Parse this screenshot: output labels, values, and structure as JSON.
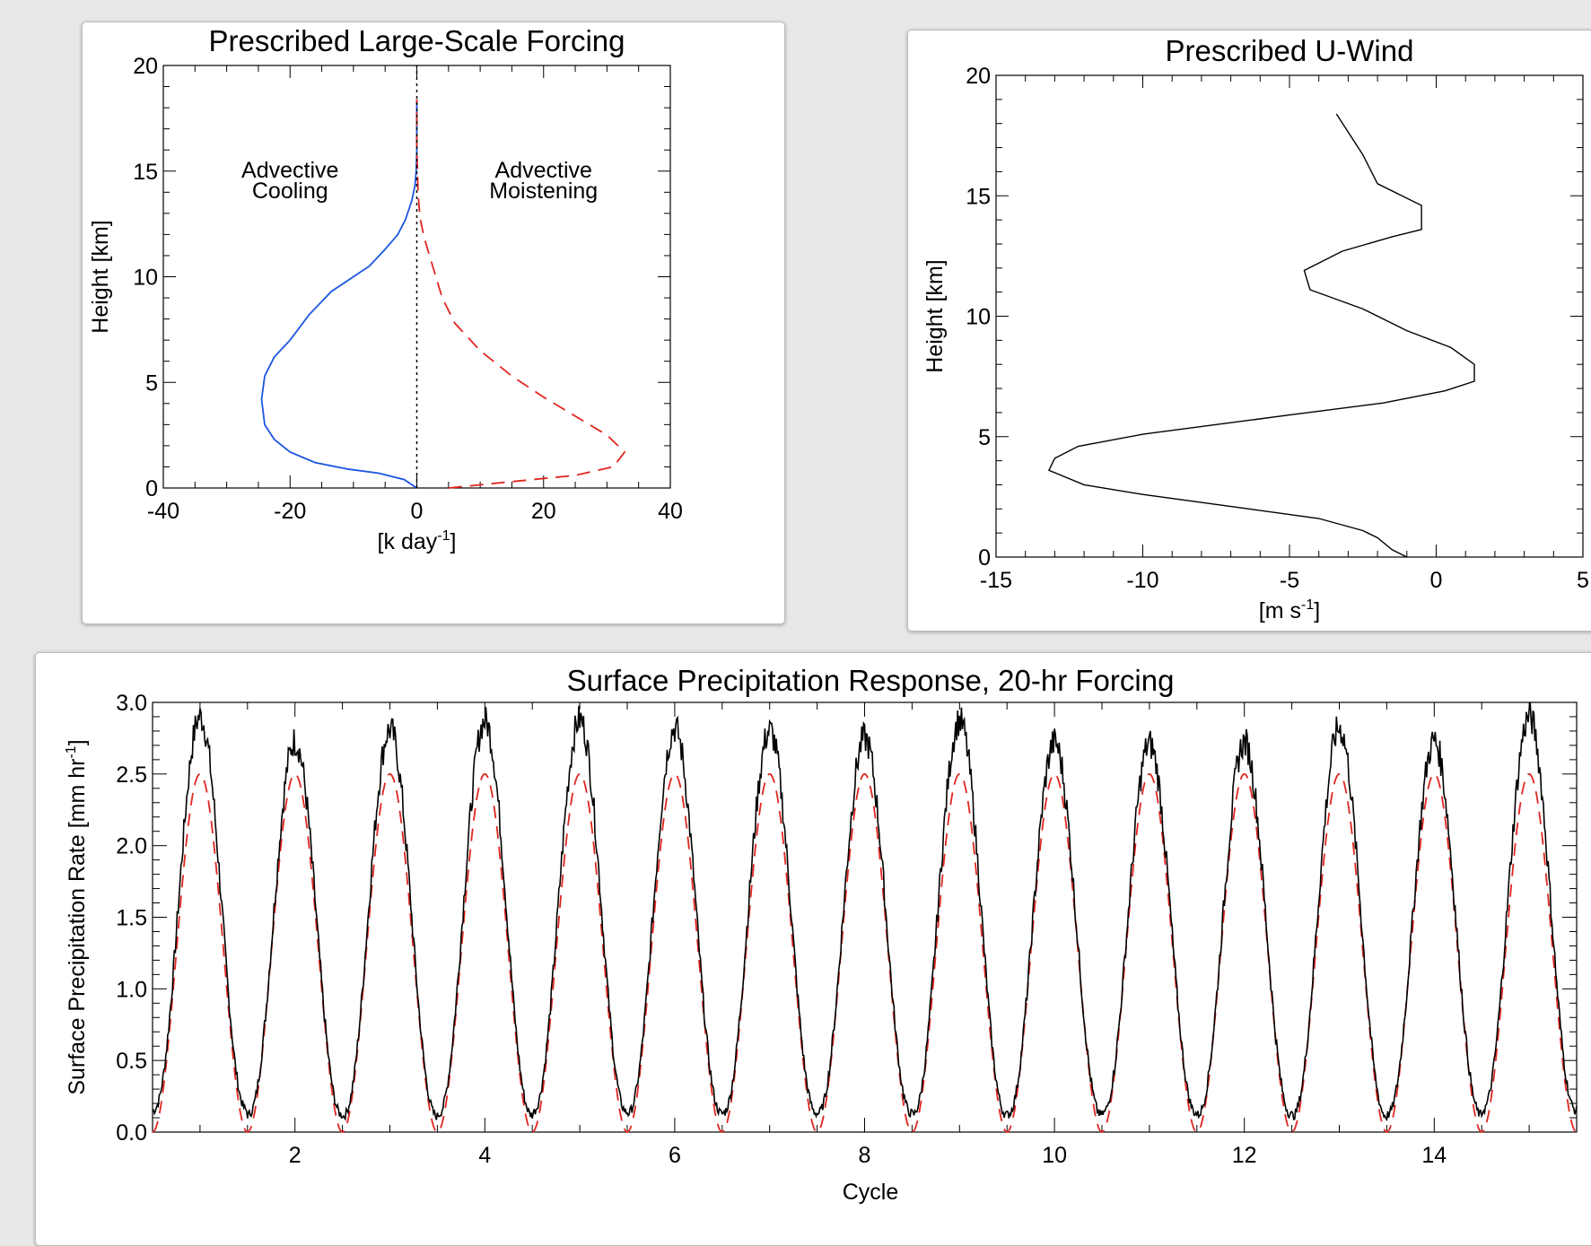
{
  "chart_data": [
    {
      "type": "line",
      "title": "Prescribed Large-Scale Forcing",
      "xlabel": "[k day⁻¹]",
      "ylabel": "Height [km]",
      "xlim": [
        -40,
        40
      ],
      "ylim": [
        0,
        20
      ],
      "x_ticks": [
        "-40",
        "-20",
        "0",
        "20",
        "40"
      ],
      "y_ticks": [
        "0",
        "5",
        "10",
        "15",
        "20"
      ],
      "annotations": [
        {
          "text": [
            "Advective",
            "Cooling"
          ]
        },
        {
          "text": [
            "Advective",
            "Moistening"
          ]
        }
      ],
      "series": [
        {
          "style": "solid",
          "color": "#1a56e0",
          "x": [
            0,
            -2,
            -6,
            -11,
            -16,
            -20,
            -22.5,
            -24,
            -24.5,
            -24,
            -22.5,
            -20,
            -17,
            -13.5,
            -10,
            -7.5,
            -5,
            -3,
            -1.8,
            -0.8,
            -0.3,
            -0.1,
            0,
            0,
            0
          ],
          "y": [
            0,
            0.4,
            0.7,
            0.9,
            1.2,
            1.7,
            2.3,
            3.0,
            4.2,
            5.3,
            6.2,
            7.0,
            8.2,
            9.3,
            10.0,
            10.5,
            11.3,
            12.0,
            12.7,
            13.6,
            14.3,
            15.0,
            16.0,
            17.5,
            18.4
          ]
        },
        {
          "style": "dashed",
          "color": "#e0261f",
          "x": [
            5,
            15,
            25,
            31,
            32.8,
            30,
            25,
            20,
            15,
            10,
            6,
            4,
            2.5,
            1.2,
            0.5,
            0.2,
            0,
            0
          ],
          "y": [
            0,
            0.3,
            0.6,
            1.0,
            1.7,
            2.5,
            3.4,
            4.3,
            5.3,
            6.5,
            7.8,
            9.0,
            10.5,
            11.8,
            12.8,
            14.0,
            16.0,
            18.4
          ]
        },
        {
          "style": "dotted",
          "color": "#000000",
          "x": [
            0,
            0
          ],
          "y": [
            0,
            20
          ]
        }
      ]
    },
    {
      "type": "line",
      "title": "Prescribed U-Wind",
      "xlabel": "[m s⁻¹]",
      "ylabel": "Height [km]",
      "xlim": [
        -15,
        5
      ],
      "ylim": [
        0,
        20
      ],
      "x_ticks": [
        "-15",
        "-10",
        "-5",
        "0",
        "5"
      ],
      "y_ticks": [
        "0",
        "5",
        "10",
        "15",
        "20"
      ],
      "series": [
        {
          "style": "solid",
          "color": "#000000",
          "x": [
            -1,
            -1.5,
            -2,
            -2.5,
            -4,
            -7,
            -10,
            -12,
            -13.2,
            -13,
            -12.2,
            -10,
            -5,
            -1.8,
            0.3,
            1.3,
            1.3,
            0.5,
            -1,
            -2.5,
            -4.3,
            -4.5,
            -3.2,
            -1.5,
            -0.5,
            -0.5,
            -2,
            -2.5,
            -3.4
          ],
          "y": [
            0,
            0.3,
            0.8,
            1.1,
            1.6,
            2.1,
            2.6,
            3.0,
            3.6,
            4.1,
            4.6,
            5.1,
            5.9,
            6.4,
            6.9,
            7.3,
            8.0,
            8.7,
            9.4,
            10.3,
            11.1,
            11.9,
            12.7,
            13.3,
            13.6,
            14.6,
            15.5,
            16.7,
            18.4
          ]
        }
      ]
    },
    {
      "type": "line",
      "title": "Surface Precipitation Response, 20-hr Forcing",
      "xlabel": "Cycle",
      "ylabel": "Surface Precipitation Rate [mm hr⁻¹]",
      "xlim": [
        0.5,
        15.5
      ],
      "ylim": [
        0.0,
        3.0
      ],
      "x_ticks": [
        "2",
        "4",
        "6",
        "8",
        "10",
        "12",
        "14"
      ],
      "y_ticks": [
        "0.0",
        "0.5",
        "1.0",
        "1.5",
        "2.0",
        "2.5",
        "3.0"
      ],
      "series": [
        {
          "name": "",
          "style": "solid",
          "color": "#000000",
          "peaks": [
            2.9,
            2.73,
            2.81,
            2.87,
            2.88,
            2.82,
            2.8,
            2.75,
            2.87,
            2.72,
            2.71,
            2.72,
            2.82,
            2.73,
            2.9
          ],
          "troughs": [
            0.15,
            0.12,
            0.11,
            0.12,
            0.14,
            0.13,
            0.13,
            0.13,
            0.12,
            0.12,
            0.13,
            0.12,
            0.11,
            0.12,
            0.15
          ],
          "period": 1.0
        },
        {
          "name": "",
          "style": "dashed",
          "color": "#e0261f",
          "mean": 1.25,
          "amplitude": 1.25,
          "period": 1.0,
          "peak_phase": 1.0
        }
      ]
    }
  ]
}
